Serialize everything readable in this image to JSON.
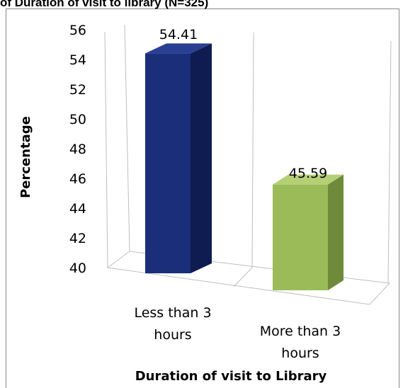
{
  "chart_data": {
    "type": "bar",
    "title": "of Duration of visit to library (N=325)",
    "categories": [
      "Less than 3 hours",
      "More than 3 hours"
    ],
    "category_lines": [
      [
        "Less than 3",
        "hours"
      ],
      [
        "More than 3",
        "hours"
      ]
    ],
    "values": [
      54.41,
      45.59
    ],
    "data_labels": [
      "54.41",
      "45.59"
    ],
    "xlabel": "Duration of visit to Library",
    "ylabel": "Percentage",
    "ylim": [
      40,
      56
    ],
    "yticks": [
      "40",
      "42",
      "44",
      "46",
      "48",
      "50",
      "52",
      "54",
      "56"
    ],
    "grid": true,
    "style": "3d-column",
    "colors": {
      "series": [
        "#1a2e7a",
        "#9bbb59"
      ],
      "series_dark": [
        "#0f1c52",
        "#6f8a3a"
      ],
      "series_light": [
        "#2a3f92",
        "#b4cf75"
      ],
      "grid": "#bfbfbf"
    }
  }
}
